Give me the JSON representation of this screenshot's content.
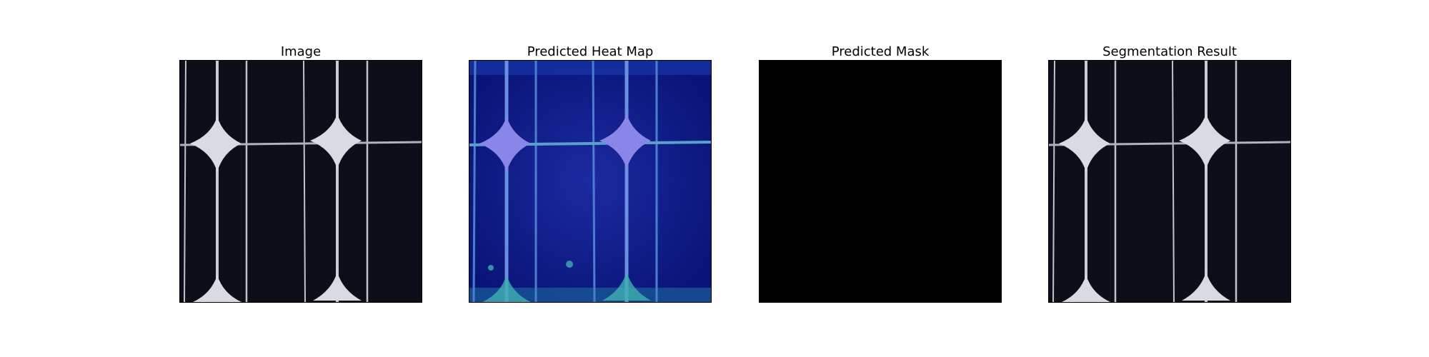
{
  "panels": [
    {
      "title": "Image",
      "kind": "cell"
    },
    {
      "title": "Predicted Heat Map",
      "kind": "heatmap"
    },
    {
      "title": "Predicted Mask",
      "kind": "mask"
    },
    {
      "title": "Segmentation Result",
      "kind": "cell"
    }
  ],
  "colors": {
    "cell_background": "#0c0f1a",
    "finger_line": "#cfd3dc",
    "busbar_pad": "#d8dbe0",
    "heatmap_base": "#0d1a8a",
    "heatmap_pad": "#8a86e8",
    "heatmap_glow": "#3fb0b0",
    "mask": "#000000"
  }
}
